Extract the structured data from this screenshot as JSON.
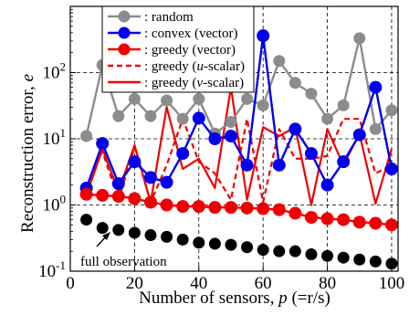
{
  "chart_data": {
    "type": "line",
    "xlabel_pre": "Number of sensors, ",
    "xlabel_var": "p",
    "xlabel_post": " (=r/s)",
    "ylabel_pre": "Reconstruction error, ",
    "ylabel_var": "e",
    "yscale": "log",
    "xlim": [
      0,
      102
    ],
    "ylim": [
      0.1,
      1000
    ],
    "grid": true,
    "legend_position": "top-center",
    "x_ticks": [
      0,
      20,
      40,
      60,
      80,
      100
    ],
    "y_ticks": [
      {
        "value": 0.1,
        "base": "10",
        "exp": "-1"
      },
      {
        "value": 1,
        "base": "10",
        "exp": "0"
      },
      {
        "value": 10,
        "base": "10",
        "exp": "1"
      },
      {
        "value": 100,
        "base": "10",
        "exp": "2"
      }
    ],
    "x": [
      5,
      10,
      15,
      20,
      25,
      30,
      35,
      40,
      45,
      50,
      55,
      60,
      65,
      70,
      75,
      80,
      85,
      90,
      95,
      100
    ],
    "series": [
      {
        "name": ": random",
        "color": "#8c8c8c",
        "style": "solid-marker",
        "values": [
          11,
          130,
          22,
          40,
          22,
          38,
          20,
          40,
          12,
          18,
          40,
          32,
          150,
          70,
          48,
          20,
          32,
          330,
          14,
          27
        ]
      },
      {
        "name": ": convex (vector)",
        "color": "#0000ee",
        "style": "solid-marker",
        "values": [
          1.8,
          8.5,
          2.1,
          4.5,
          2.6,
          2.2,
          6.0,
          20.5,
          10,
          11,
          4.0,
          360,
          4.0,
          14,
          6.0,
          2.0,
          4.5,
          11.5,
          60,
          3.5
        ]
      },
      {
        "name": ": greedy (vector)",
        "color": "#ee0000",
        "style": "solid-marker",
        "values": [
          1.45,
          1.4,
          1.35,
          1.25,
          1.1,
          1.0,
          0.95,
          0.95,
          0.92,
          0.92,
          0.9,
          0.88,
          0.85,
          0.75,
          0.65,
          0.62,
          0.6,
          0.55,
          0.53,
          0.5
        ]
      },
      {
        "name_pre": ": greedy (",
        "name_var": "u",
        "name_post": "-scalar)",
        "color": "#ee0000",
        "style": "dashed",
        "values": [
          1.8,
          6.5,
          1.2,
          7.5,
          1.1,
          4.0,
          20,
          4.5,
          3.0,
          1.2,
          20,
          1.1,
          14,
          5.0,
          5.0,
          5.5,
          20,
          20,
          3.0,
          4.0
        ]
      },
      {
        "name_pre": ": greedy (",
        "name_var": "v",
        "name_post": "-scalar)",
        "color": "#ee0000",
        "style": "solid",
        "values": [
          1.4,
          7.0,
          1.6,
          8.0,
          1.1,
          30,
          3.5,
          5.0,
          1.8,
          60,
          1.2,
          15,
          11,
          15,
          1.0,
          14,
          4.0,
          12,
          1.05,
          7.0
        ]
      },
      {
        "name": "full observation",
        "color": "#000000",
        "style": "marker",
        "values": [
          0.6,
          0.45,
          0.42,
          0.38,
          0.35,
          0.33,
          0.3,
          0.27,
          0.26,
          0.25,
          0.23,
          0.21,
          0.2,
          0.2,
          0.18,
          0.17,
          0.16,
          0.15,
          0.14,
          0.13
        ]
      }
    ],
    "annotation": "full observation"
  }
}
